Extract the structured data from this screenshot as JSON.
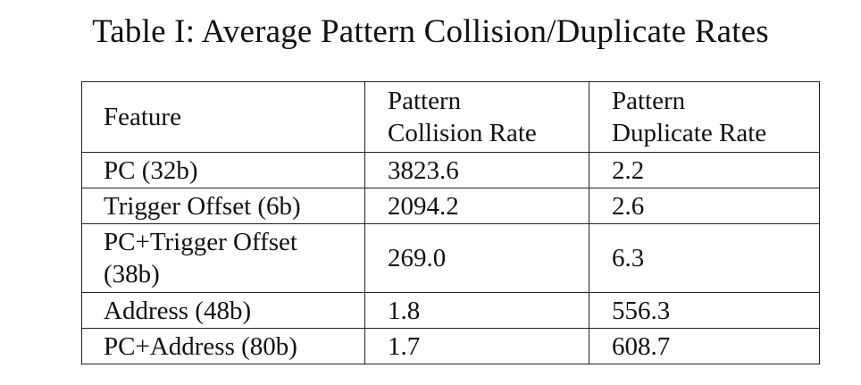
{
  "caption": "Table I: Average Pattern Collision/Duplicate Rates",
  "chart_data": {
    "type": "table",
    "title": "Table I: Average Pattern Collision/Duplicate Rates",
    "columns": [
      {
        "lines": [
          "Feature"
        ]
      },
      {
        "lines": [
          "Pattern",
          "Collision Rate"
        ]
      },
      {
        "lines": [
          "Pattern",
          "Duplicate Rate"
        ]
      }
    ],
    "rows": [
      {
        "feature": [
          "PC (32b)"
        ],
        "collision_rate": "3823.6",
        "duplicate_rate": "2.2"
      },
      {
        "feature": [
          "Trigger Offset (6b)"
        ],
        "collision_rate": "2094.2",
        "duplicate_rate": "2.6"
      },
      {
        "feature": [
          "PC+Trigger Offset",
          "(38b)"
        ],
        "collision_rate": "269.0",
        "duplicate_rate": "6.3"
      },
      {
        "feature": [
          "Address (48b)"
        ],
        "collision_rate": "1.8",
        "duplicate_rate": "556.3"
      },
      {
        "feature": [
          "PC+Address (80b)"
        ],
        "collision_rate": "1.7",
        "duplicate_rate": "608.7"
      }
    ]
  }
}
